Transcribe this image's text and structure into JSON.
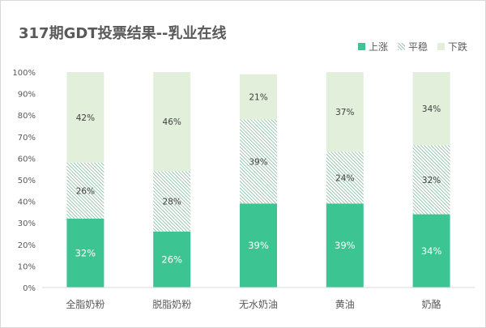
{
  "chart_data": {
    "type": "bar",
    "stacked": true,
    "title": "317期GDT投票结果--乳业在线",
    "categories": [
      "全脂奶粉",
      "脱脂奶粉",
      "无水奶油",
      "黄油",
      "奶酪"
    ],
    "series": [
      {
        "name": "上涨",
        "values": [
          32,
          26,
          39,
          39,
          34
        ],
        "labels": [
          "32%",
          "26%",
          "39%",
          "39%",
          "34%"
        ],
        "color": "#3cc593",
        "pattern": "solid"
      },
      {
        "name": "平稳",
        "values": [
          26,
          28,
          39,
          24,
          32
        ],
        "labels": [
          "26%",
          "28%",
          "39%",
          "24%",
          "32%"
        ],
        "color": "#6aa888",
        "pattern": "hatch"
      },
      {
        "name": "下跌",
        "values": [
          42,
          46,
          21,
          37,
          34
        ],
        "labels": [
          "42%",
          "46%",
          "21%",
          "37%",
          "34%"
        ],
        "color": "#e2efda",
        "pattern": "solid"
      }
    ],
    "yticks": [
      "0%",
      "10%",
      "20%",
      "30%",
      "40%",
      "50%",
      "60%",
      "70%",
      "80%",
      "90%",
      "100%"
    ],
    "ylim": [
      0,
      100
    ],
    "legend_position": "top-right",
    "grid": false
  }
}
